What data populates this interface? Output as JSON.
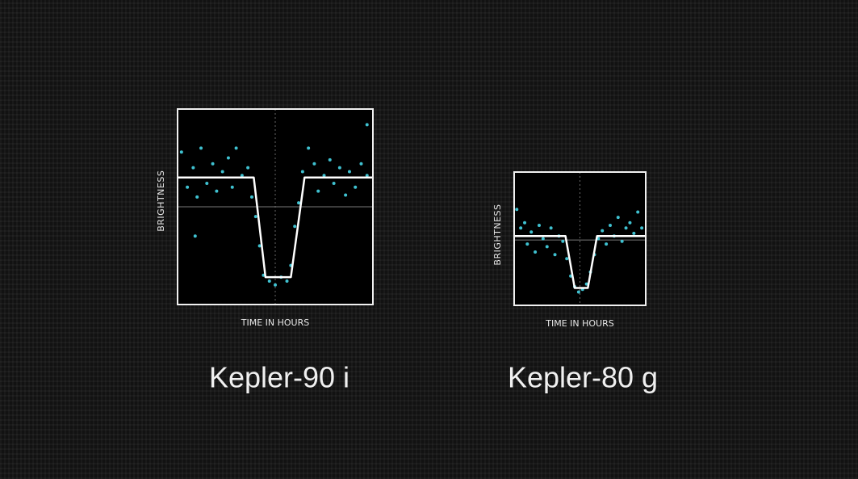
{
  "chart_data": [
    {
      "type": "scatter",
      "title": "Kepler-90 i",
      "x_label": "TIME IN HOURS",
      "y_label": "BRIGHTNESS",
      "xlim": [
        0,
        100
      ],
      "ylim": [
        0,
        100
      ],
      "series": [
        {
          "type": "scatter",
          "color": "#3fc1d0",
          "x": [
            2,
            5,
            8,
            10,
            12,
            15,
            18,
            20,
            23,
            26,
            28,
            30,
            33,
            36,
            38,
            40,
            42,
            44,
            47,
            50,
            53,
            56,
            58,
            60,
            62,
            64,
            67,
            70,
            72,
            75,
            78,
            80,
            83,
            86,
            88,
            91,
            94,
            97,
            9,
            97
          ],
          "values": [
            78,
            60,
            70,
            55,
            80,
            62,
            72,
            58,
            68,
            75,
            60,
            80,
            66,
            70,
            55,
            45,
            30,
            15,
            12,
            10,
            14,
            12,
            20,
            40,
            52,
            68,
            80,
            72,
            58,
            66,
            74,
            62,
            70,
            56,
            68,
            60,
            72,
            66,
            35,
            92
          ]
        },
        {
          "type": "line",
          "color": "#ffffff",
          "x": [
            0,
            39,
            45,
            58,
            65,
            100
          ],
          "values": [
            65,
            65,
            14,
            14,
            65,
            65
          ]
        }
      ]
    },
    {
      "type": "scatter",
      "title": "Kepler-80 g",
      "x_label": "TIME IN HOURS",
      "y_label": "BRIGHTNESS",
      "xlim": [
        0,
        100
      ],
      "ylim": [
        0,
        100
      ],
      "series": [
        {
          "type": "scatter",
          "color": "#3fc1d0",
          "x": [
            2,
            5,
            8,
            10,
            13,
            16,
            19,
            22,
            25,
            28,
            31,
            34,
            37,
            40,
            43,
            46,
            49,
            52,
            55,
            58,
            61,
            64,
            67,
            70,
            73,
            76,
            79,
            82,
            85,
            88,
            91,
            94,
            97
          ],
          "values": [
            72,
            58,
            62,
            46,
            55,
            40,
            60,
            50,
            44,
            58,
            38,
            52,
            48,
            35,
            22,
            14,
            10,
            12,
            16,
            25,
            38,
            50,
            56,
            46,
            60,
            52,
            66,
            48,
            58,
            62,
            54,
            70,
            58
          ]
        },
        {
          "type": "line",
          "color": "#ffffff",
          "x": [
            0,
            39,
            46,
            56,
            63,
            100
          ],
          "values": [
            52,
            52,
            13,
            13,
            52,
            52
          ]
        }
      ]
    }
  ]
}
